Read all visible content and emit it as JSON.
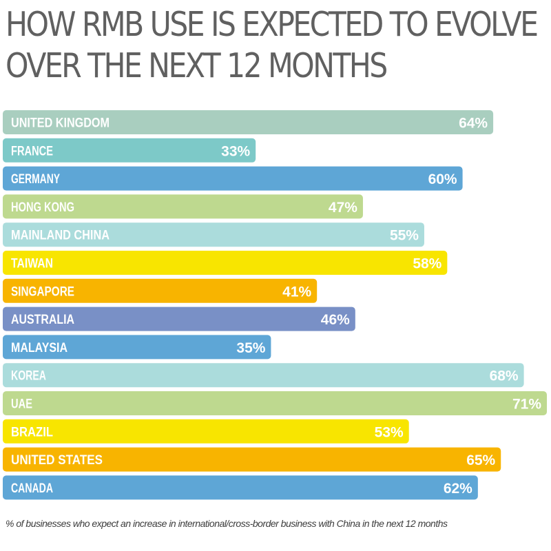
{
  "title": {
    "line1": "HOW RMB USE IS EXPECTED TO EVOLVE",
    "line2": "OVER THE NEXT 12 MONTHS"
  },
  "footnote": "% of businesses who expect an increase in international/cross-border business with China in the next 12 months",
  "chart_data": {
    "type": "bar",
    "orientation": "horizontal",
    "title": "HOW RMB USE IS EXPECTED TO EVOLVE OVER THE NEXT 12 MONTHS",
    "xlabel": "",
    "ylabel": "",
    "xlim": [
      0,
      71
    ],
    "grid": false,
    "legend": "none",
    "value_suffix": "%",
    "categories": [
      "UNITED KINGDOM",
      "FRANCE",
      "GERMANY",
      "HONG KONG",
      "MAINLAND CHINA",
      "TAIWAN",
      "SINGAPORE",
      "AUSTRALIA",
      "MALAYSIA",
      "KOREA",
      "UAE",
      "BRAZIL",
      "UNITED STATES",
      "CANADA"
    ],
    "values": [
      64,
      33,
      60,
      47,
      55,
      58,
      41,
      46,
      35,
      68,
      71,
      53,
      65,
      62
    ],
    "colors": [
      "#a9cebf",
      "#7dc9c8",
      "#5ea6d6",
      "#bed98f",
      "#abdcdc",
      "#f8e500",
      "#f8b400",
      "#7990c6",
      "#5ea6d6",
      "#abdcdc",
      "#bed98f",
      "#f8e500",
      "#f8b400",
      "#5ea6d6"
    ]
  }
}
